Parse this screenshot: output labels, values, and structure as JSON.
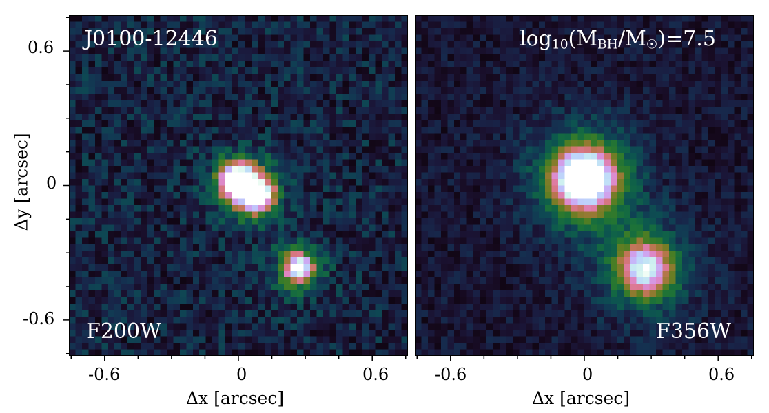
{
  "panels": [
    {
      "name": "F200W",
      "object_label": "J0100-12446",
      "filter_label": "F200W",
      "sources": [
        {
          "dx": 0.0,
          "dy": 0.02,
          "peak": 1.0
        },
        {
          "dx": 0.08,
          "dy": -0.04,
          "peak": 0.8
        },
        {
          "dx": 0.27,
          "dy": -0.37,
          "peak": 0.6
        }
      ]
    },
    {
      "name": "F356W",
      "annotation_prefix": "log",
      "annotation_sub1": "10",
      "annotation_mid": "(M",
      "annotation_sub2": "BH",
      "annotation_mid2": "/M",
      "annotation_sub3": "☉",
      "annotation_suffix": ")=7.5",
      "filter_label": "F356W",
      "sources": [
        {
          "dx": 0.0,
          "dy": 0.03,
          "peak": 1.0
        },
        {
          "dx": 0.27,
          "dy": -0.37,
          "peak": 0.55
        }
      ]
    }
  ],
  "axes": {
    "xlabel": "Δx [arcsec]",
    "ylabel": "Δy [arcsec]",
    "x_ticks": [
      "-0.6",
      "0",
      "0.6"
    ],
    "y_ticks": [
      "0.6",
      "0",
      "-0.6"
    ],
    "xlim": [
      -0.76,
      0.76
    ],
    "ylim": [
      -0.76,
      0.76
    ]
  },
  "colormap": "cubehelix"
}
